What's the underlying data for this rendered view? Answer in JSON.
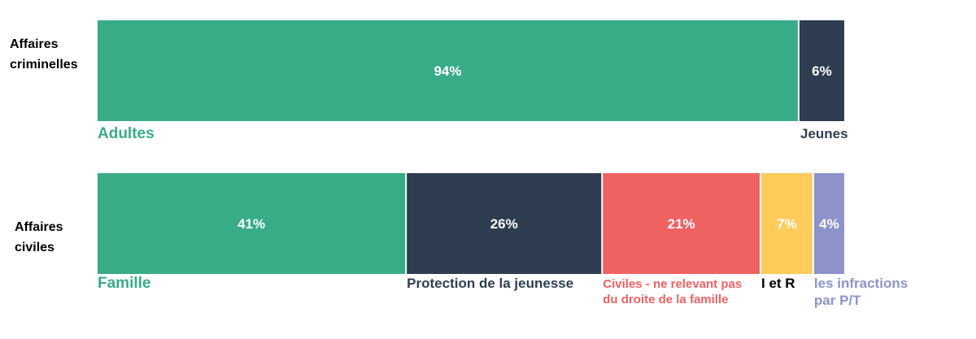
{
  "chart_data": {
    "type": "bar",
    "stacked": "horizontal-100-percent",
    "grid": false,
    "legend": "none",
    "rows": [
      {
        "label_lines": [
          "Affaires",
          "criminelles"
        ],
        "segments": [
          {
            "category_lines": [
              "Adultes"
            ],
            "value": 94,
            "label": "94%",
            "color": "#38ac87",
            "label_color": "#38ac87"
          },
          {
            "category_lines": [
              "Jeunes"
            ],
            "value": 6,
            "label": "6%",
            "color": "#2e3d50",
            "label_color": "#2e3d50"
          }
        ]
      },
      {
        "label_lines": [
          "Affaires",
          "civiles"
        ],
        "segments": [
          {
            "category_lines": [
              "Famille"
            ],
            "value": 41,
            "label": "41%",
            "color": "#38ac87",
            "label_color": "#38ac87"
          },
          {
            "category_lines": [
              "Protection de la jeunesse"
            ],
            "value": 26,
            "label": "26%",
            "color": "#2e3d50",
            "label_color": "#2e3d50"
          },
          {
            "category_lines": [
              "Civiles - ne relevant pas",
              "du droite de la famille"
            ],
            "value": 21,
            "label": "21%",
            "color": "#f06161",
            "label_color": "#f06161"
          },
          {
            "category_lines": [
              "I et R"
            ],
            "value": 7,
            "label": "7%",
            "color": "#ffcb5b",
            "label_color": "#000000"
          },
          {
            "category_lines": [
              "les infractions",
              "par P/T"
            ],
            "value": 4,
            "label": "4%",
            "color": "#8d93c9",
            "label_color": "#8d93c9"
          }
        ]
      }
    ]
  }
}
